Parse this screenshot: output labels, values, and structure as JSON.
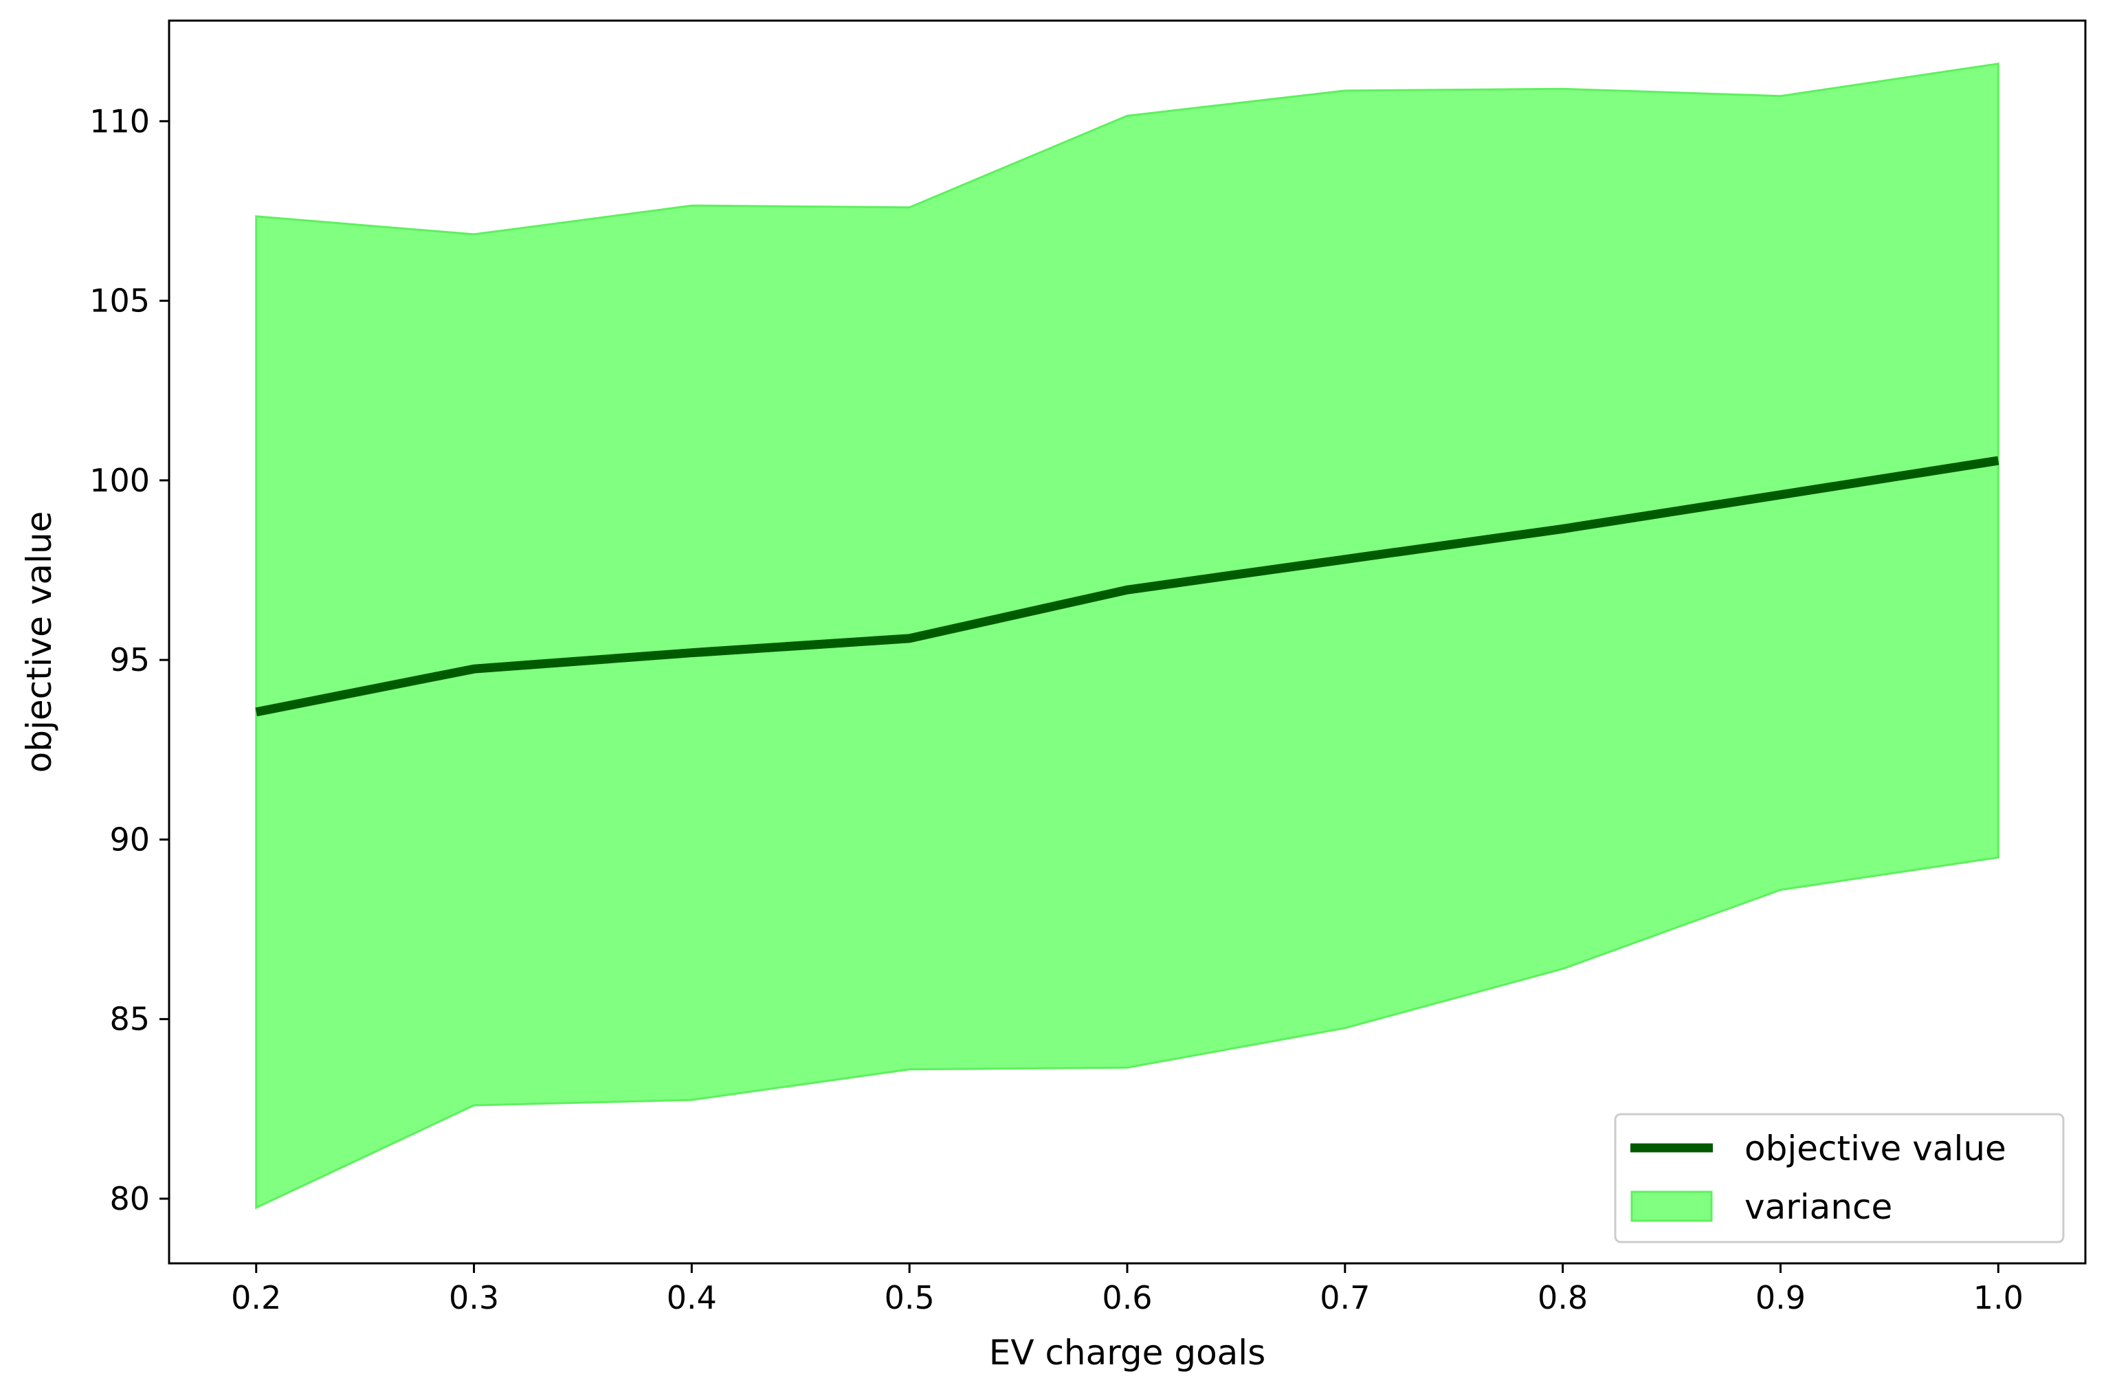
{
  "chart_data": {
    "type": "line",
    "xlabel": "EV charge goals",
    "ylabel": "objective value",
    "xlim": [
      0.16,
      1.04
    ],
    "ylim": [
      78.2,
      112.8
    ],
    "x": [
      0.2,
      0.3,
      0.4,
      0.5,
      0.6,
      0.7,
      0.8,
      0.9,
      1.0
    ],
    "x_ticks": [
      "0.2",
      "0.3",
      "0.4",
      "0.5",
      "0.6",
      "0.7",
      "0.8",
      "0.9",
      "1.0"
    ],
    "y_ticks": [
      "80",
      "85",
      "90",
      "95",
      "100",
      "105",
      "110"
    ],
    "grid": false,
    "legend": "bottom-right",
    "series": [
      {
        "name": "objective value",
        "kind": "line",
        "color": "#005a00",
        "values": [
          93.55,
          94.75,
          95.2,
          95.6,
          96.95,
          97.8,
          98.65,
          99.6,
          100.55
        ]
      },
      {
        "name": "variance",
        "kind": "band",
        "color": "#80ff80",
        "edge_color": "#5ef05e",
        "lower": [
          79.75,
          82.6,
          82.75,
          83.6,
          83.65,
          84.75,
          86.4,
          88.6,
          89.5
        ],
        "upper": [
          107.35,
          106.85,
          107.65,
          107.6,
          110.15,
          110.85,
          110.9,
          110.7,
          111.6
        ]
      }
    ]
  }
}
